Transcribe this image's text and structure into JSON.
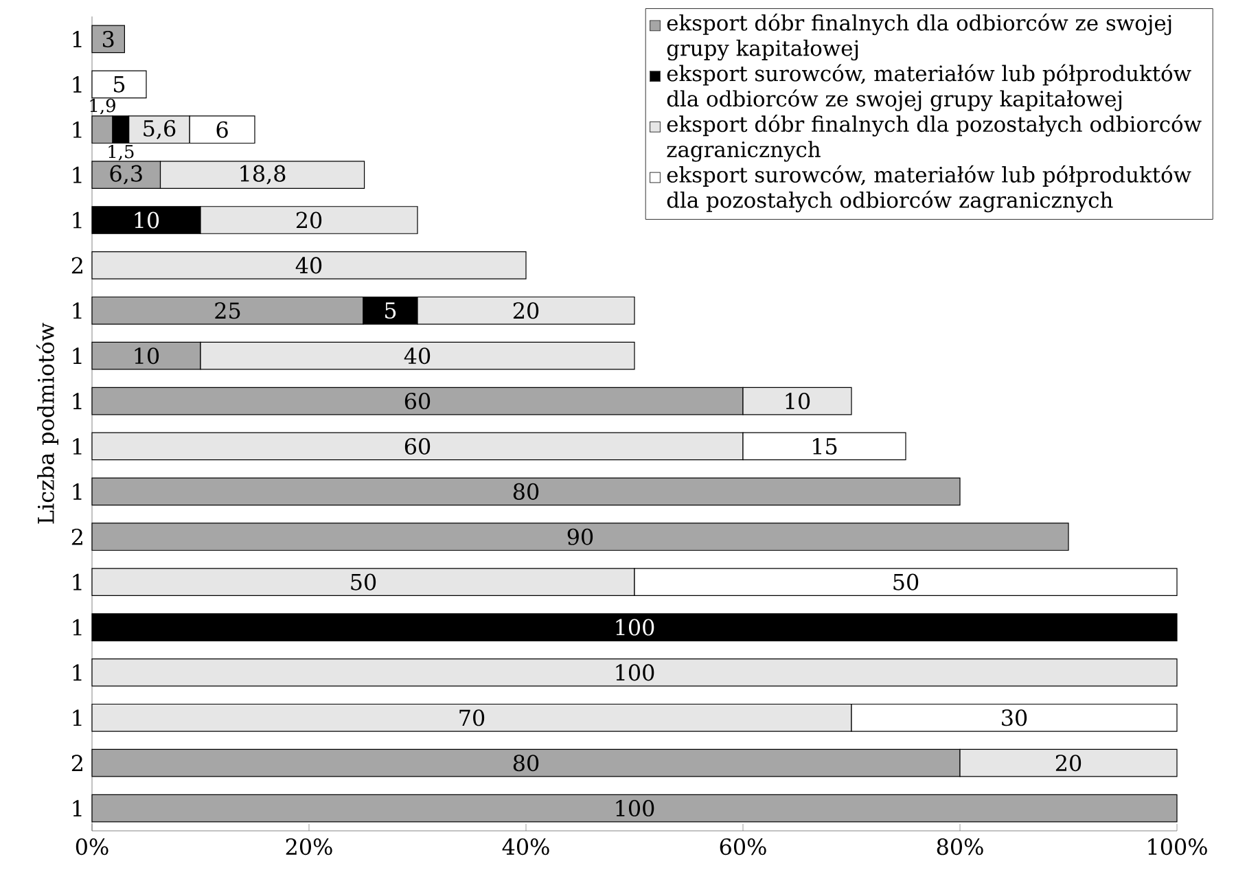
{
  "chart_data": {
    "type": "bar",
    "orientation": "horizontal",
    "stacked": true,
    "data_labels": true,
    "legend": "top right",
    "ylabel": "Liczba podmiotów",
    "categories": [
      "1",
      "1",
      "1",
      "1",
      "1",
      "2",
      "1",
      "1",
      "1",
      "1",
      "1",
      "2",
      "1",
      "1",
      "1",
      "1",
      "2",
      "1"
    ],
    "xlim": [
      0,
      100
    ],
    "xticks": [
      {
        "value": 0,
        "label": "0%"
      },
      {
        "value": 20,
        "label": "20%"
      },
      {
        "value": 40,
        "label": "40%"
      },
      {
        "value": 60,
        "label": "60%"
      },
      {
        "value": 80,
        "label": "80%"
      },
      {
        "value": 100,
        "label": "100%"
      }
    ],
    "series": [
      {
        "name": "eksport dóbr finalnych dla odbiorców ze swojej grupy kapitałowej",
        "color": "#a6a6a6",
        "values": [
          3,
          null,
          1.9,
          6.3,
          null,
          null,
          25,
          10,
          60,
          null,
          80,
          90,
          null,
          null,
          null,
          null,
          80,
          100
        ],
        "value_labels": [
          "3",
          null,
          "1,9",
          "6,3",
          null,
          null,
          "25",
          "10",
          "60",
          null,
          "80",
          "90",
          null,
          null,
          null,
          null,
          "80",
          "100"
        ]
      },
      {
        "name": "eksport surowców, materiałów lub półproduktów dla odbiorców ze swojej grupy kapitałowej",
        "color": "#000000",
        "values": [
          null,
          null,
          1.5,
          null,
          10,
          null,
          5,
          null,
          null,
          null,
          null,
          null,
          null,
          100,
          null,
          null,
          null,
          null
        ],
        "value_labels": [
          null,
          null,
          "1,5",
          null,
          "10",
          null,
          "5",
          null,
          null,
          null,
          null,
          null,
          null,
          "100",
          null,
          null,
          null,
          null
        ]
      },
      {
        "name": "eksport dóbr finalnych dla pozostałych odbiorców zagranicznych",
        "color": "#e6e6e6",
        "values": [
          null,
          null,
          5.6,
          18.8,
          20,
          40,
          20,
          40,
          10,
          60,
          null,
          null,
          50,
          null,
          100,
          70,
          20,
          null
        ],
        "value_labels": [
          null,
          null,
          "5,6",
          "18,8",
          "20",
          "40",
          "20",
          "40",
          "10",
          "60",
          null,
          null,
          "50",
          null,
          "100",
          "70",
          "20",
          null
        ]
      },
      {
        "name": "eksport surowców, materiałów lub półproduktów dla pozostałych odbiorców zagranicznych",
        "color": "#ffffff",
        "values": [
          null,
          5,
          6,
          null,
          null,
          null,
          null,
          null,
          null,
          15,
          null,
          null,
          50,
          null,
          null,
          30,
          null,
          null
        ],
        "value_labels": [
          null,
          "5",
          "6",
          null,
          null,
          null,
          null,
          null,
          null,
          "15",
          null,
          null,
          "50",
          null,
          null,
          "30",
          null,
          null
        ]
      }
    ]
  }
}
